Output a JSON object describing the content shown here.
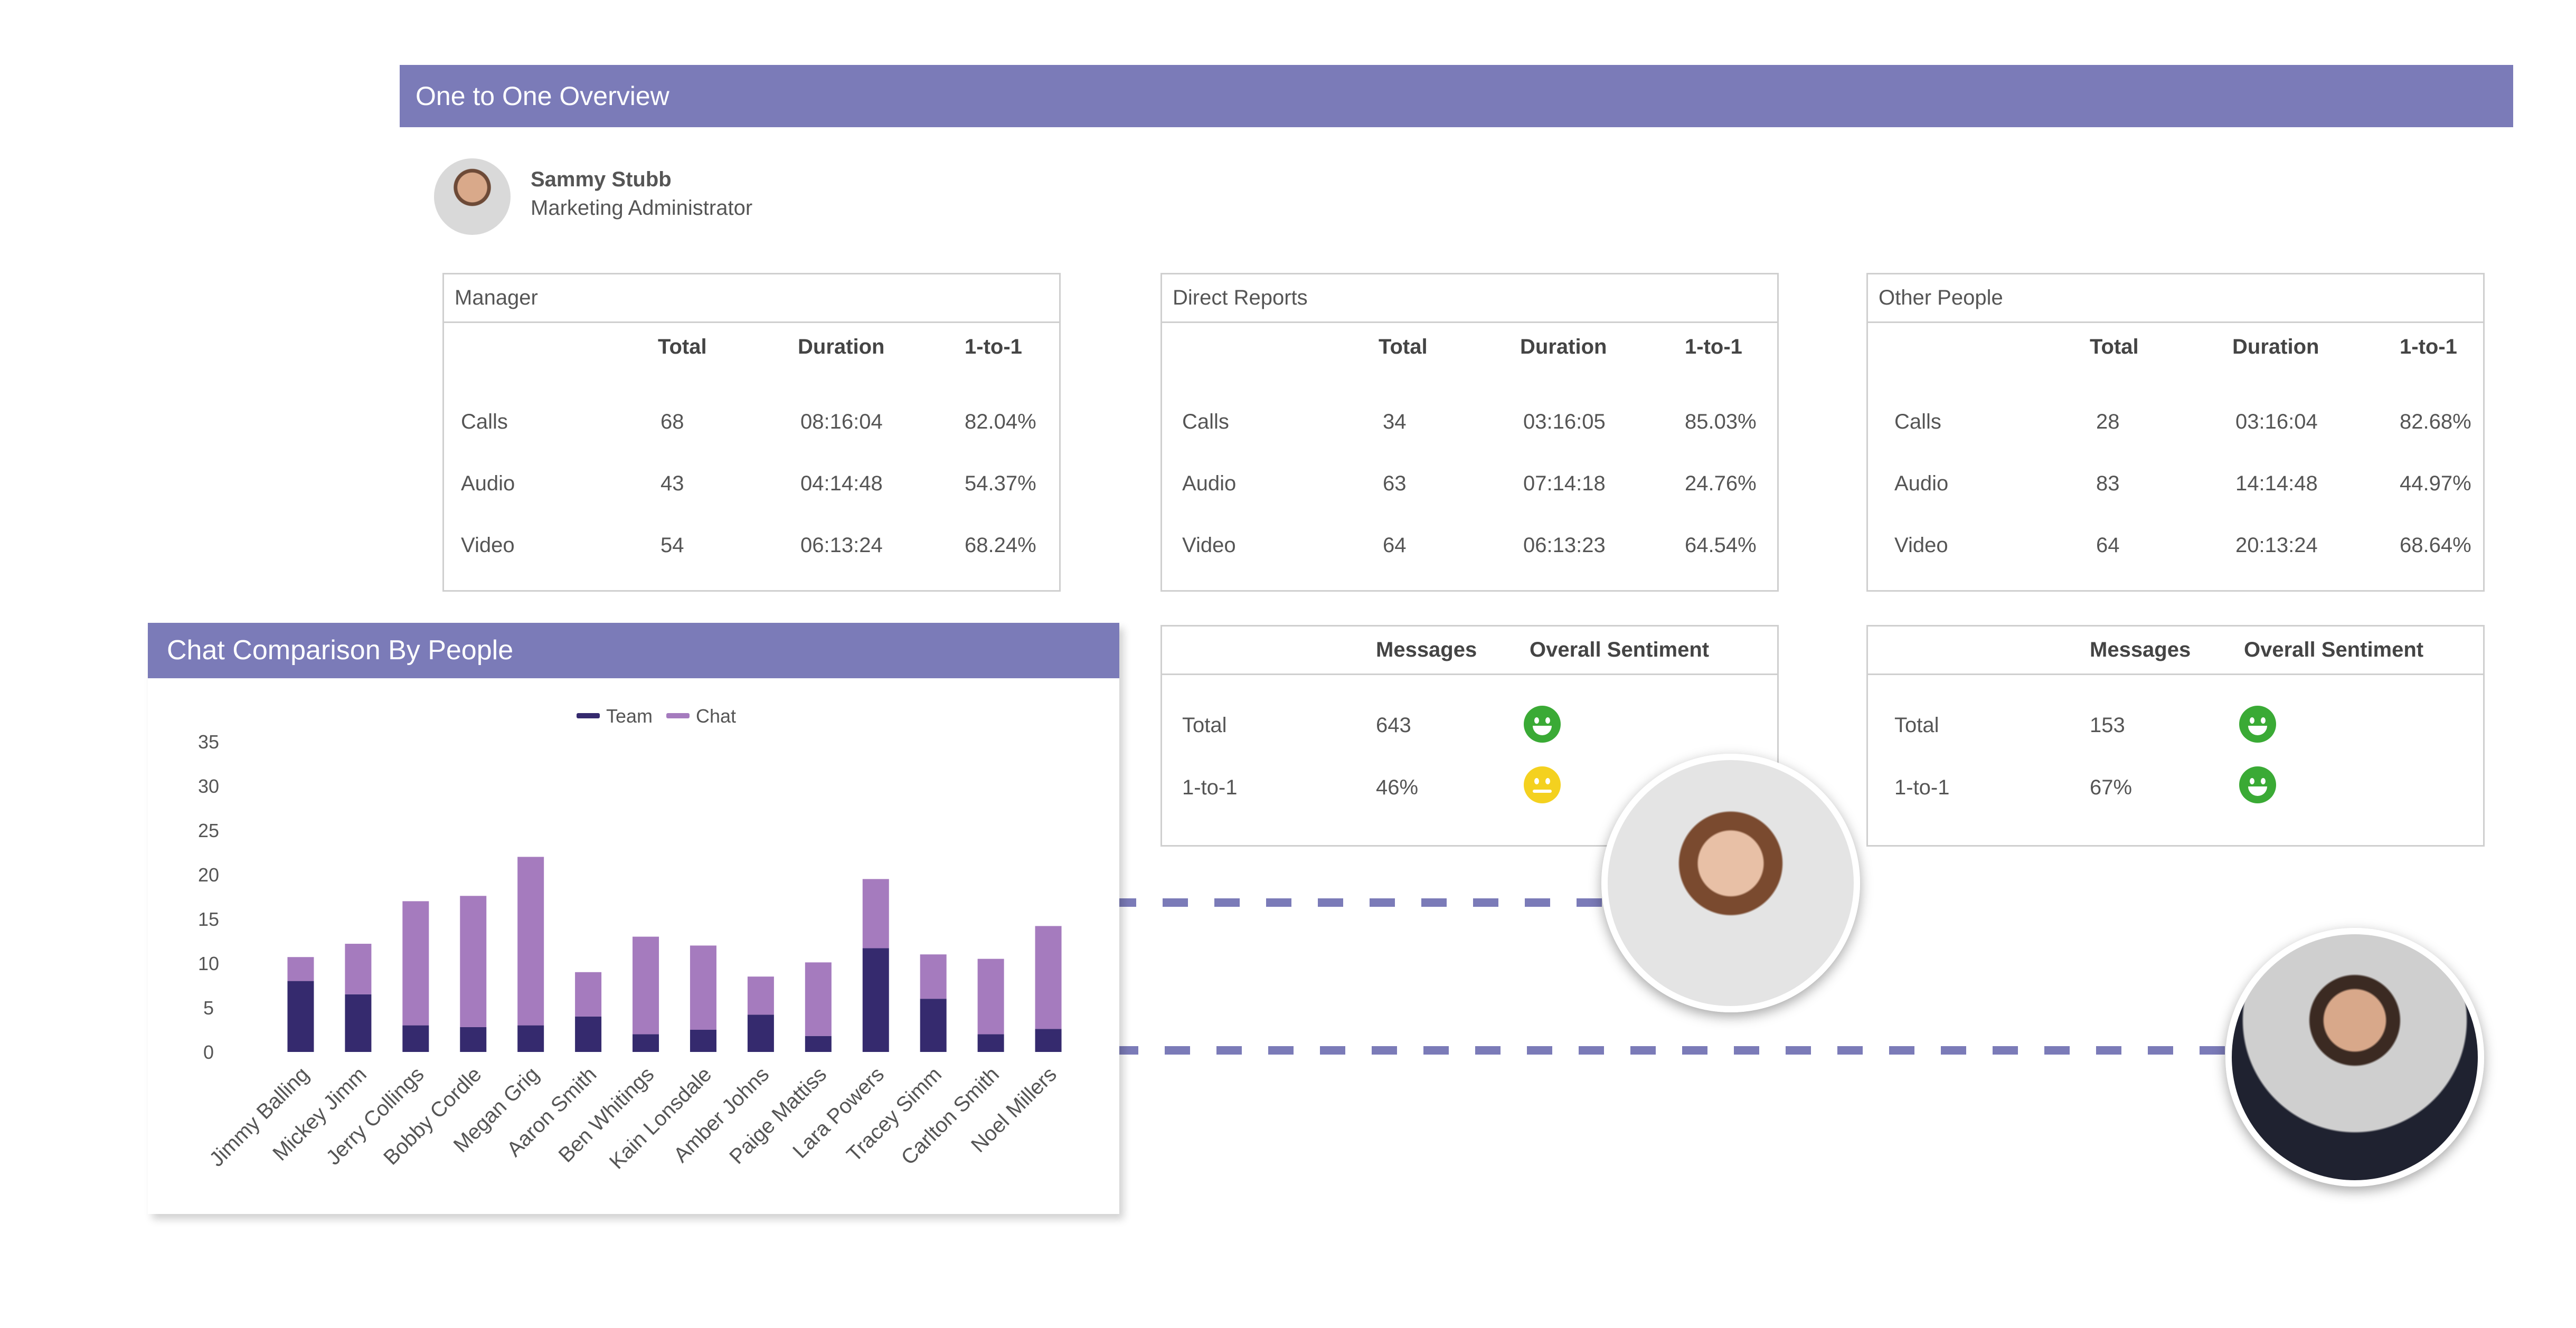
{
  "header": {
    "title": "One to One Overview"
  },
  "profile": {
    "name": "Sammy Stubb",
    "role": "Marketing Administrator"
  },
  "columns": [
    "Total",
    "Duration",
    "1-to-1"
  ],
  "panels": [
    {
      "title": "Manager",
      "rows": [
        {
          "label": "Calls",
          "total": "68",
          "duration": "08:16:04",
          "one_to_one": "82.04%"
        },
        {
          "label": "Audio",
          "total": "43",
          "duration": "04:14:48",
          "one_to_one": "54.37%"
        },
        {
          "label": "Video",
          "total": "54",
          "duration": "06:13:24",
          "one_to_one": "68.24%"
        }
      ]
    },
    {
      "title": "Direct Reports",
      "rows": [
        {
          "label": "Calls",
          "total": "34",
          "duration": "03:16:05",
          "one_to_one": "85.03%"
        },
        {
          "label": "Audio",
          "total": "63",
          "duration": "07:14:18",
          "one_to_one": "24.76%"
        },
        {
          "label": "Video",
          "total": "64",
          "duration": "06:13:23",
          "one_to_one": "64.54%"
        }
      ]
    },
    {
      "title": "Other People",
      "rows": [
        {
          "label": "Calls",
          "total": "28",
          "duration": "03:16:04",
          "one_to_one": "82.68%"
        },
        {
          "label": "Audio",
          "total": "83",
          "duration": "14:14:48",
          "one_to_one": "44.97%"
        },
        {
          "label": "Video",
          "total": "64",
          "duration": "20:13:24",
          "one_to_one": "68.64%"
        }
      ]
    }
  ],
  "sentiment_columns": [
    "Messages",
    "Overall Sentiment"
  ],
  "sentiment_panels": [
    {
      "rows": [
        {
          "label": "Total",
          "messages": "643",
          "sentiment": "happy-face-icon",
          "color": "#3aaa35"
        },
        {
          "label": "1-to-1",
          "messages": "46%",
          "sentiment": "neutral-face-icon",
          "color": "#f4d11f"
        }
      ]
    },
    {
      "rows": [
        {
          "label": "Total",
          "messages": "153",
          "sentiment": "happy-face-icon",
          "color": "#3aaa35"
        },
        {
          "label": "1-to-1",
          "messages": "67%",
          "sentiment": "happy-face-icon",
          "color": "#3aaa35"
        }
      ]
    }
  ],
  "colors": {
    "accent": "#7b7bb8",
    "team": "#352a6e",
    "chat": "#a57bbe"
  },
  "chart_title": "Chat Comparison By People",
  "chart_data": {
    "type": "bar",
    "stacked": true,
    "title": "Chat Comparison By People",
    "categories": [
      "Jimmy Balling",
      "Mickey Jimm",
      "Jerry Collings",
      "Bobby Cordle",
      "Megan Grig",
      "Aaron Smith",
      "Ben Whitings",
      "Kain Lonsdale",
      "Amber Johns",
      "Paige Mattiss",
      "Lara Powers",
      "Tracey Simm",
      "Carlton Smith",
      "Noel Millers"
    ],
    "series": [
      {
        "name": "Team",
        "values": [
          8,
          6.5,
          3,
          2.8,
          3,
          4,
          2,
          2.5,
          4.2,
          1.8,
          11.7,
          6,
          2,
          2.6
        ]
      },
      {
        "name": "Chat",
        "values": [
          2.7,
          5.7,
          14,
          14.8,
          19,
          5,
          11,
          9.5,
          4.3,
          8.3,
          7.8,
          5,
          8.5,
          11.6
        ]
      }
    ],
    "y_ticks": [
      0,
      5,
      10,
      15,
      20,
      25,
      30,
      35
    ],
    "ylim": [
      0,
      35
    ],
    "legend": "top-center",
    "grid": false
  }
}
